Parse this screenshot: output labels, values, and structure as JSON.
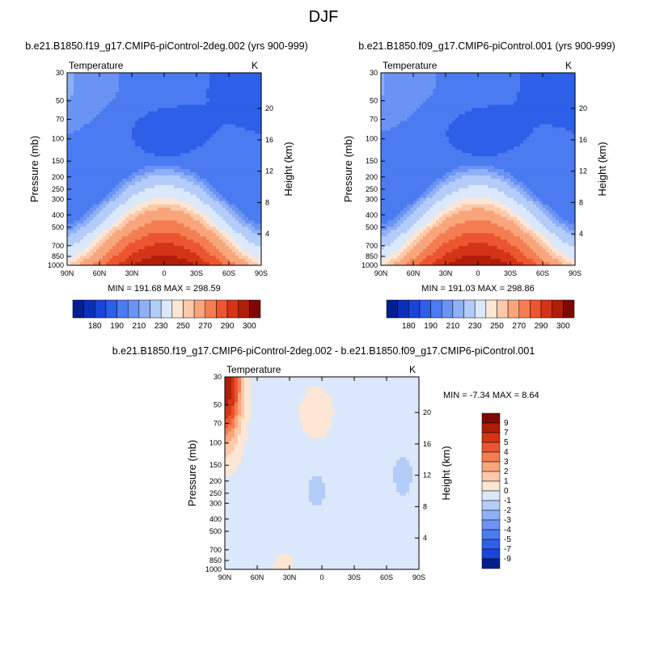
{
  "figure": {
    "title": "DJF",
    "panel_left_title": "b.e21.B1850.f19_g17.CMIP6-piControl-2deg.002 (yrs 900-999)",
    "panel_right_title": "b.e21.B1850.f09_g17.CMIP6-piControl.001 (yrs 900-999)",
    "panel_diff_title": "b.e21.B1850.f19_g17.CMIP6-piControl-2deg.002 - b.e21.B1850.f09_g17.CMIP6-piControl.001"
  },
  "chart_data": [
    {
      "type": "heatmap",
      "id": "left",
      "variable": "Temperature",
      "units": "K",
      "ylabel": "Pressure (mb)",
      "ylabel_right": "Height (km)",
      "x_ticks": [
        "90N",
        "60N",
        "30N",
        "0",
        "30S",
        "60S",
        "90S"
      ],
      "y_ticks": [
        "30",
        "50",
        "70",
        "100",
        "150",
        "200",
        "250",
        "300",
        "400",
        "500",
        "700",
        "850",
        "1000"
      ],
      "height_ticks": [
        "20",
        "16",
        "12",
        "8",
        "4"
      ],
      "ylim": [
        30,
        1000
      ],
      "min_max_text": "MIN = 191.68  MAX = 298.59",
      "levels": [
        "180",
        "190",
        "210",
        "230",
        "250",
        "270",
        "290",
        "300"
      ],
      "colors": [
        "#001f8c",
        "#0a30b8",
        "#1a45d9",
        "#2d5fe8",
        "#4a7bf0",
        "#6b93f3",
        "#8fb0f6",
        "#b3ccf9",
        "#dbe8fb",
        "#fde6d4",
        "#fcc9aa",
        "#f9a57c",
        "#f47d52",
        "#eb5530",
        "#d43416",
        "#b01d08",
        "#7d0a00"
      ]
    },
    {
      "type": "heatmap",
      "id": "right",
      "variable": "Temperature",
      "units": "K",
      "ylabel": "Pressure (mb)",
      "ylabel_right": "Height (km)",
      "x_ticks": [
        "90N",
        "60N",
        "30N",
        "0",
        "30S",
        "60S",
        "90S"
      ],
      "y_ticks": [
        "30",
        "50",
        "70",
        "100",
        "150",
        "200",
        "250",
        "300",
        "400",
        "500",
        "700",
        "850",
        "1000"
      ],
      "height_ticks": [
        "20",
        "16",
        "12",
        "8",
        "4"
      ],
      "ylim": [
        30,
        1000
      ],
      "min_max_text": "MIN = 191.03  MAX = 298.86",
      "levels": [
        "180",
        "190",
        "210",
        "230",
        "250",
        "270",
        "290",
        "300"
      ],
      "colors": [
        "#001f8c",
        "#0a30b8",
        "#1a45d9",
        "#2d5fe8",
        "#4a7bf0",
        "#6b93f3",
        "#8fb0f6",
        "#b3ccf9",
        "#dbe8fb",
        "#fde6d4",
        "#fcc9aa",
        "#f9a57c",
        "#f47d52",
        "#eb5530",
        "#d43416",
        "#b01d08",
        "#7d0a00"
      ]
    },
    {
      "type": "heatmap",
      "id": "diff",
      "variable": "Temperature",
      "units": "K",
      "ylabel": "Pressure (mb)",
      "ylabel_right": "Height (km)",
      "x_ticks": [
        "90N",
        "60N",
        "30N",
        "0",
        "30S",
        "60S",
        "90S"
      ],
      "y_ticks": [
        "30",
        "50",
        "70",
        "100",
        "150",
        "200",
        "250",
        "300",
        "400",
        "500",
        "700",
        "850",
        "1000"
      ],
      "height_ticks": [
        "20",
        "16",
        "12",
        "8",
        "4"
      ],
      "ylim": [
        30,
        1000
      ],
      "min_max_text": "MIN =  -7.34  MAX =   8.64",
      "levels": [
        "9",
        "7",
        "5",
        "4",
        "3",
        "2",
        "1",
        "0",
        "-1",
        "-2",
        "-3",
        "-4",
        "-5",
        "-7",
        "-9"
      ],
      "colors": [
        "#7d0a00",
        "#b01d08",
        "#d43416",
        "#eb5530",
        "#f47d52",
        "#f9a57c",
        "#fcc9aa",
        "#fde6d4",
        "#dbe8fb",
        "#b3ccf9",
        "#8fb0f6",
        "#6b93f3",
        "#4a7bf0",
        "#2d5fe8",
        "#1a45d9",
        "#001f8c"
      ]
    }
  ]
}
